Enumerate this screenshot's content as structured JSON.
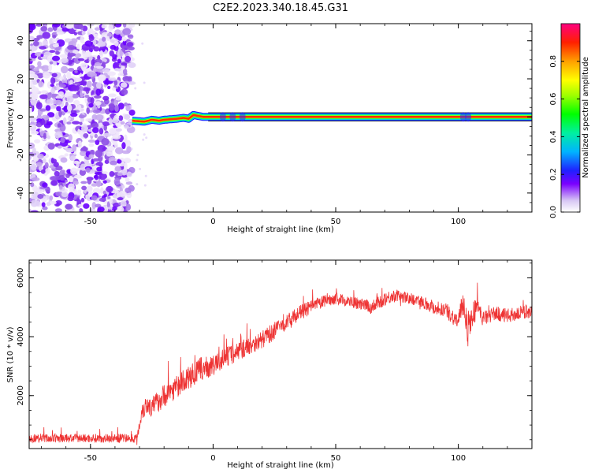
{
  "title": "C2E2.2023.340.18.45.G31",
  "chart_data": [
    {
      "type": "heatmap",
      "xlabel": "Height of straight line (km)",
      "ylabel": "Frequency (Hz)",
      "xlim": [
        -75,
        130
      ],
      "ylim": [
        -50,
        49
      ],
      "xticks": [
        -50,
        0,
        50,
        100
      ],
      "xtick_labels": [
        "-50",
        "0",
        "50",
        "100"
      ],
      "yticks": [
        -40,
        -20,
        0,
        20,
        40
      ],
      "ytick_labels": [
        "-40",
        "-20",
        "0",
        "20",
        "40"
      ],
      "colorbar": {
        "label": "Normalized spectral amplitude",
        "range": [
          0,
          1
        ],
        "ticks": [
          0.0,
          0.2,
          0.4,
          0.6,
          0.8
        ],
        "tick_labels": [
          "0.0",
          "0.2",
          "0.4",
          "0.6",
          "0.8"
        ]
      },
      "noise_region": {
        "x": [
          -75,
          -33
        ],
        "frequency_range": [
          -50,
          49
        ],
        "amplitude_range": [
          0.1,
          0.3
        ]
      },
      "signal_ridge": {
        "x": [
          -33,
          -28,
          -25,
          -22,
          -20,
          -15,
          -12,
          -10,
          -8,
          -6,
          -4,
          0,
          130
        ],
        "frequency": [
          -2,
          -2.5,
          -1.5,
          -2,
          -1.5,
          -1,
          -0.5,
          -1,
          1,
          0.5,
          0,
          0,
          0
        ],
        "amplitude": [
          0.3,
          0.35,
          0.4,
          0.5,
          0.55,
          0.6,
          0.65,
          0.7,
          0.75,
          0.8,
          0.85,
          0.9,
          0.9
        ]
      },
      "grid": false
    },
    {
      "type": "line",
      "xlabel": "Height of straight line (km)",
      "ylabel": "SNR (10 * v/v)",
      "xlim": [
        -75,
        130
      ],
      "ylim": [
        200,
        6600
      ],
      "xticks": [
        -50,
        0,
        50,
        100
      ],
      "xtick_labels": [
        "-50",
        "0",
        "50",
        "100"
      ],
      "yticks": [
        2000,
        4000,
        6000
      ],
      "ytick_labels": [
        "2000",
        "4000",
        "6000"
      ],
      "color": "#ee3333",
      "series": [
        {
          "x": [
            -75,
            -60,
            -45,
            -31,
            -29,
            -27,
            -25,
            -20,
            -15,
            -10,
            -5,
            0,
            5,
            10,
            15,
            20,
            25,
            30,
            35,
            40,
            45,
            50,
            55,
            60,
            65,
            70,
            75,
            80,
            85,
            90,
            95,
            100,
            102,
            104,
            106,
            108,
            110,
            115,
            120,
            125,
            130
          ],
          "y": [
            550,
            550,
            550,
            550,
            1500,
            1700,
            1600,
            2000,
            2300,
            2600,
            2900,
            3000,
            3300,
            3500,
            3700,
            3900,
            4200,
            4500,
            4800,
            5000,
            5200,
            5300,
            5200,
            5100,
            5000,
            5300,
            5400,
            5300,
            5200,
            5000,
            4900,
            4500,
            5200,
            4200,
            4800,
            5000,
            4600,
            4800,
            4700,
            4800,
            4900
          ],
          "noise_amplitude": [
            300,
            300,
            300,
            300,
            700,
            700,
            700,
            800,
            800,
            800,
            800,
            700,
            700,
            700,
            600,
            600,
            600,
            500,
            500,
            500,
            400,
            400,
            400,
            400,
            500,
            500,
            400,
            400,
            400,
            500,
            500,
            600,
            900,
            1200,
            900,
            600,
            500,
            500,
            500,
            500,
            500
          ]
        }
      ],
      "grid": false
    }
  ]
}
